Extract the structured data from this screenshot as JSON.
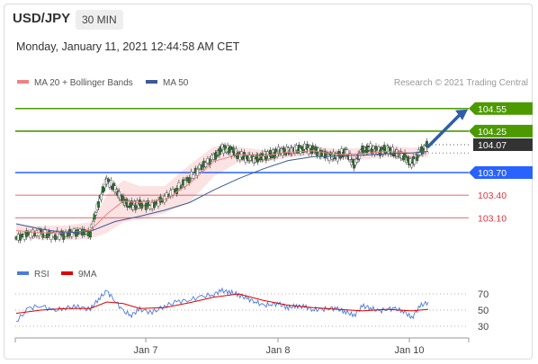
{
  "header": {
    "symbol": "USD/JPY",
    "timeframe": "30 MIN",
    "datetime": "Monday, January 11, 2021 12:44:58 AM CET"
  },
  "legend": {
    "ma20_label": "MA 20 + Bollinger Bands",
    "ma50_label": "MA 50",
    "credit": "Research © 2021 Trading Central",
    "rsi_label": "RSI",
    "ma9_label": "9MA"
  },
  "colors": {
    "resistance": "#4c9a00",
    "support": "#2962ff",
    "minor_level": "#d9363e",
    "current_price": "#333333",
    "ma20": "#f08080",
    "ma50": "#3b5998",
    "bollinger_fill": "#fbe3e3",
    "rsi": "#4b7bdc",
    "ma9": "#e00000",
    "arrow": "#2f5ea8"
  },
  "chart_data": [
    {
      "type": "line",
      "panel": "price",
      "y_unit": "JPY",
      "x_ticks": [
        "Jan 7",
        "Jan 8",
        "Jan 10"
      ],
      "levels": [
        {
          "value": 104.55,
          "label": "104.55",
          "kind": "resistance"
        },
        {
          "value": 104.25,
          "label": "104.25",
          "kind": "resistance"
        },
        {
          "value": 104.07,
          "label": "104.07",
          "kind": "current"
        },
        {
          "value": 103.7,
          "label": "103.70",
          "kind": "support"
        },
        {
          "value": 103.4,
          "label": "103.40",
          "kind": "minor"
        },
        {
          "value": 103.1,
          "label": "103.10",
          "kind": "minor"
        }
      ],
      "ylim": [
        102.65,
        104.75
      ],
      "price_path": {
        "x": [
          0,
          3,
          6,
          9,
          12,
          15,
          18,
          20,
          22,
          24,
          26,
          28,
          30,
          33,
          36,
          39,
          42,
          45,
          48,
          50,
          52,
          54,
          56,
          58,
          60,
          62,
          64,
          66,
          68,
          70,
          72,
          74,
          76,
          78,
          80,
          82,
          84,
          86,
          88,
          90,
          92,
          94,
          96,
          98,
          100
        ],
        "y": [
          102.83,
          102.88,
          102.9,
          102.86,
          102.88,
          102.92,
          102.9,
          103.3,
          103.6,
          103.48,
          103.32,
          103.26,
          103.28,
          103.26,
          103.36,
          103.48,
          103.62,
          103.78,
          103.9,
          104.02,
          104.0,
          103.93,
          103.9,
          103.88,
          103.92,
          103.94,
          103.98,
          103.98,
          104.0,
          104.02,
          104.01,
          103.96,
          103.92,
          103.92,
          103.98,
          103.8,
          104.0,
          104.02,
          103.98,
          104.01,
          103.96,
          103.92,
          103.82,
          103.97,
          104.07
        ]
      },
      "ma20": {
        "x": [
          0,
          6,
          12,
          18,
          22,
          26,
          30,
          36,
          42,
          48,
          54,
          60,
          66,
          72,
          78,
          84,
          90,
          96,
          100
        ],
        "y": [
          102.93,
          102.9,
          102.9,
          102.93,
          103.15,
          103.32,
          103.3,
          103.34,
          103.55,
          103.85,
          103.94,
          103.92,
          103.97,
          103.99,
          103.94,
          103.95,
          103.98,
          103.96,
          103.98
        ]
      },
      "ma50": {
        "x": [
          0,
          6,
          12,
          18,
          24,
          30,
          36,
          42,
          48,
          54,
          60,
          66,
          72,
          78,
          84,
          90,
          96,
          100
        ],
        "y": [
          103.02,
          102.95,
          102.9,
          102.92,
          103.05,
          103.12,
          103.2,
          103.3,
          103.47,
          103.62,
          103.75,
          103.86,
          103.91,
          103.92,
          103.93,
          103.95,
          103.96,
          103.98
        ]
      }
    },
    {
      "type": "line",
      "panel": "rsi",
      "y_ticks": [
        "70",
        "50",
        "30"
      ],
      "ylim": [
        20,
        80
      ],
      "rsi": {
        "x": [
          0,
          3,
          6,
          9,
          12,
          15,
          18,
          20,
          22,
          24,
          26,
          28,
          30,
          33,
          36,
          39,
          42,
          45,
          48,
          50,
          52,
          54,
          56,
          58,
          60,
          62,
          64,
          66,
          68,
          70,
          72,
          74,
          76,
          78,
          80,
          82,
          84,
          86,
          88,
          90,
          92,
          94,
          96,
          98,
          100
        ],
        "y": [
          36,
          52,
          56,
          49,
          53,
          54,
          51,
          64,
          73,
          62,
          48,
          44,
          51,
          47,
          55,
          60,
          63,
          66,
          70,
          74,
          72,
          69,
          64,
          61,
          55,
          58,
          57,
          53,
          55,
          54,
          51,
          50,
          53,
          51,
          48,
          43,
          55,
          53,
          48,
          52,
          51,
          49,
          40,
          55,
          60
        ]
      },
      "ma9": {
        "x": [
          0,
          6,
          12,
          18,
          22,
          26,
          30,
          36,
          42,
          48,
          54,
          60,
          66,
          72,
          78,
          84,
          90,
          96,
          100
        ],
        "y": [
          46,
          50,
          52,
          52,
          60,
          58,
          52,
          53,
          59,
          66,
          70,
          62,
          56,
          53,
          51,
          49,
          51,
          49,
          51
        ]
      }
    }
  ]
}
